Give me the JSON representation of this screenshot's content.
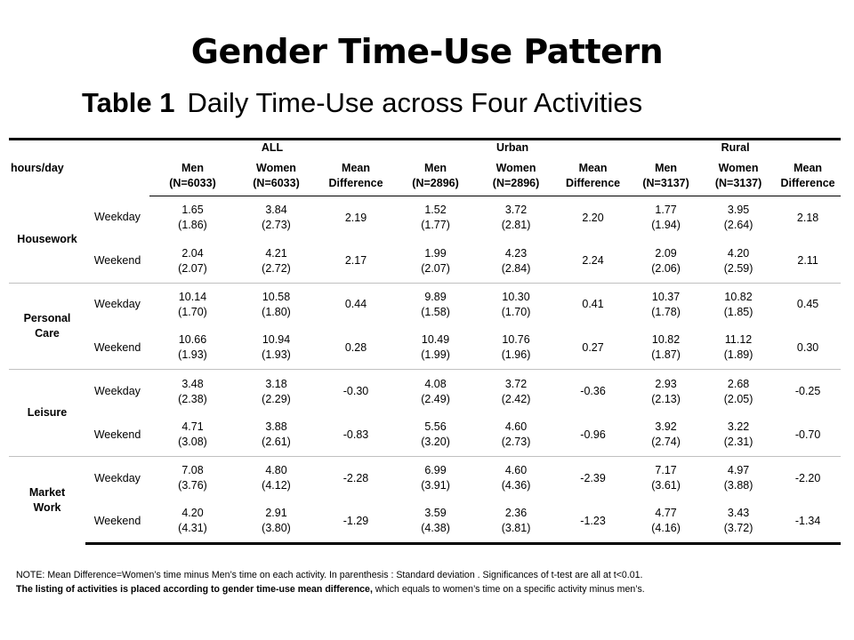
{
  "title": "Gender Time-Use Pattern",
  "caption": {
    "bold": "Table 1",
    "text": "Daily Time-Use across Four Activities"
  },
  "table": {
    "unit_label": "hours/day",
    "groups": [
      "ALL",
      "Urban",
      "Rural"
    ],
    "subheaders": {
      "ALL": [
        [
          "Men",
          "(N=6033)"
        ],
        [
          "Women",
          "(N=6033)"
        ],
        [
          "Mean",
          "Difference"
        ]
      ],
      "Urban": [
        [
          "Men",
          "(N=2896)"
        ],
        [
          "Women",
          "(N=2896)"
        ],
        [
          "Mean",
          "Difference"
        ]
      ],
      "Rural": [
        [
          "Men",
          "(N=3137)"
        ],
        [
          "Women",
          "(N=3137)"
        ],
        [
          "Mean",
          "Difference"
        ]
      ]
    },
    "activities": [
      {
        "name": [
          "Housework"
        ],
        "rows": [
          {
            "day": "Weekday",
            "all": [
              [
                "1.65",
                "(1.86)"
              ],
              [
                "3.84",
                "(2.73)"
              ],
              "2.19"
            ],
            "urban": [
              [
                "1.52",
                "(1.77)"
              ],
              [
                "3.72",
                "(2.81)"
              ],
              "2.20"
            ],
            "rural": [
              [
                "1.77",
                "(1.94)"
              ],
              [
                "3.95",
                "(2.64)"
              ],
              "2.18"
            ]
          },
          {
            "day": "Weekend",
            "all": [
              [
                "2.04",
                "(2.07)"
              ],
              [
                "4.21",
                "(2.72)"
              ],
              "2.17"
            ],
            "urban": [
              [
                "1.99",
                "(2.07)"
              ],
              [
                "4.23",
                "(2.84)"
              ],
              "2.24"
            ],
            "rural": [
              [
                "2.09",
                "(2.06)"
              ],
              [
                "4.20",
                "(2.59)"
              ],
              "2.11"
            ]
          }
        ]
      },
      {
        "name": [
          "Personal",
          "Care"
        ],
        "rows": [
          {
            "day": "Weekday",
            "all": [
              [
                "10.14",
                "(1.70)"
              ],
              [
                "10.58",
                "(1.80)"
              ],
              "0.44"
            ],
            "urban": [
              [
                "9.89",
                "(1.58)"
              ],
              [
                "10.30",
                "(1.70)"
              ],
              "0.41"
            ],
            "rural": [
              [
                "10.37",
                "(1.78)"
              ],
              [
                "10.82",
                "(1.85)"
              ],
              "0.45"
            ]
          },
          {
            "day": "Weekend",
            "all": [
              [
                "10.66",
                "(1.93)"
              ],
              [
                "10.94",
                "(1.93)"
              ],
              "0.28"
            ],
            "urban": [
              [
                "10.49",
                "(1.99)"
              ],
              [
                "10.76",
                "(1.96)"
              ],
              "0.27"
            ],
            "rural": [
              [
                "10.82",
                "(1.87)"
              ],
              [
                "11.12",
                "(1.89)"
              ],
              "0.30"
            ]
          }
        ]
      },
      {
        "name": [
          "Leisure"
        ],
        "rows": [
          {
            "day": "Weekday",
            "all": [
              [
                "3.48",
                "(2.38)"
              ],
              [
                "3.18",
                "(2.29)"
              ],
              "-0.30"
            ],
            "urban": [
              [
                "4.08",
                "(2.49)"
              ],
              [
                "3.72",
                "(2.42)"
              ],
              "-0.36"
            ],
            "rural": [
              [
                "2.93",
                "(2.13)"
              ],
              [
                "2.68",
                "(2.05)"
              ],
              "-0.25"
            ]
          },
          {
            "day": "Weekend",
            "all": [
              [
                "4.71",
                "(3.08)"
              ],
              [
                "3.88",
                "(2.61)"
              ],
              "-0.83"
            ],
            "urban": [
              [
                "5.56",
                "(3.20)"
              ],
              [
                "4.60",
                "(2.73)"
              ],
              "-0.96"
            ],
            "rural": [
              [
                "3.92",
                "(2.74)"
              ],
              [
                "3.22",
                "(2.31)"
              ],
              "-0.70"
            ]
          }
        ]
      },
      {
        "name": [
          "Market",
          "Work"
        ],
        "rows": [
          {
            "day": "Weekday",
            "all": [
              [
                "7.08",
                "(3.76)"
              ],
              [
                "4.80",
                "(4.12)"
              ],
              "-2.28"
            ],
            "urban": [
              [
                "6.99",
                "(3.91)"
              ],
              [
                "4.60",
                "(4.36)"
              ],
              "-2.39"
            ],
            "rural": [
              [
                "7.17",
                "(3.61)"
              ],
              [
                "4.97",
                "(3.88)"
              ],
              "-2.20"
            ]
          },
          {
            "day": "Weekend",
            "all": [
              [
                "4.20",
                "(4.31)"
              ],
              [
                "2.91",
                "(3.80)"
              ],
              "-1.29"
            ],
            "urban": [
              [
                "3.59",
                "(4.38)"
              ],
              [
                "2.36",
                "(3.81)"
              ],
              "-1.23"
            ],
            "rural": [
              [
                "4.77",
                "(4.16)"
              ],
              [
                "3.43",
                "(3.72)"
              ],
              "-1.34"
            ]
          }
        ]
      }
    ]
  },
  "note": {
    "line1": "NOTE: Mean Difference=Women’s time minus Men’s time on each activity.  In parenthesis : Standard deviation .  Significances of t-test are all at t<0.01.",
    "line2_bold": "The listing of activities is placed according to gender time-use mean difference,",
    "line2_rest": " which equals to women’s time on a specific activity minus men’s."
  }
}
